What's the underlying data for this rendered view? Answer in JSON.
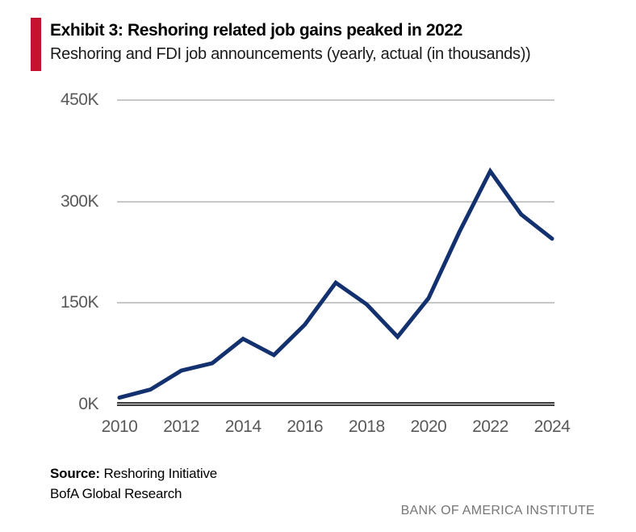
{
  "header": {
    "title": "Exhibit 3: Reshoring related job gains peaked in 2022",
    "subtitle": "Reshoring and FDI job announcements (yearly, actual (in thousands))"
  },
  "footer": {
    "source_label": "Source:",
    "source_value": "Reshoring Initiative",
    "research": "BofA Global Research",
    "brand": "BANK OF AMERICA INSTITUTE"
  },
  "colors": {
    "accent_red": "#C41230",
    "line_navy": "#12316E",
    "gridline_gray": "#C7C7C7",
    "axis_dark": "#3f3f3f",
    "axis_label_gray": "#595959",
    "brand_gray": "#767676"
  },
  "chart_data": {
    "type": "line",
    "title": "Exhibit 3: Reshoring related job gains peaked in 2022",
    "subtitle": "Reshoring and FDI job announcements (yearly, actual (in thousands))",
    "series_name": "Reshoring and FDI job announcements (thousands)",
    "x": [
      2010,
      2011,
      2012,
      2013,
      2014,
      2015,
      2016,
      2017,
      2018,
      2019,
      2020,
      2021,
      2022,
      2023,
      2024
    ],
    "values": [
      10,
      22,
      50,
      61,
      97,
      73,
      118,
      180,
      148,
      100,
      157,
      255,
      345,
      281,
      245
    ],
    "xticks": [
      2010,
      2012,
      2014,
      2016,
      2018,
      2020,
      2022,
      2024
    ],
    "yticks": [
      {
        "value": 0,
        "label": "0K"
      },
      {
        "value": 150,
        "label": "150K"
      },
      {
        "value": 300,
        "label": "300K"
      },
      {
        "value": 450,
        "label": "450K"
      }
    ],
    "ylim": [
      0,
      450
    ],
    "grid": "horizontal",
    "legend": "none",
    "line_color": "#12316E",
    "line_width": 5
  }
}
